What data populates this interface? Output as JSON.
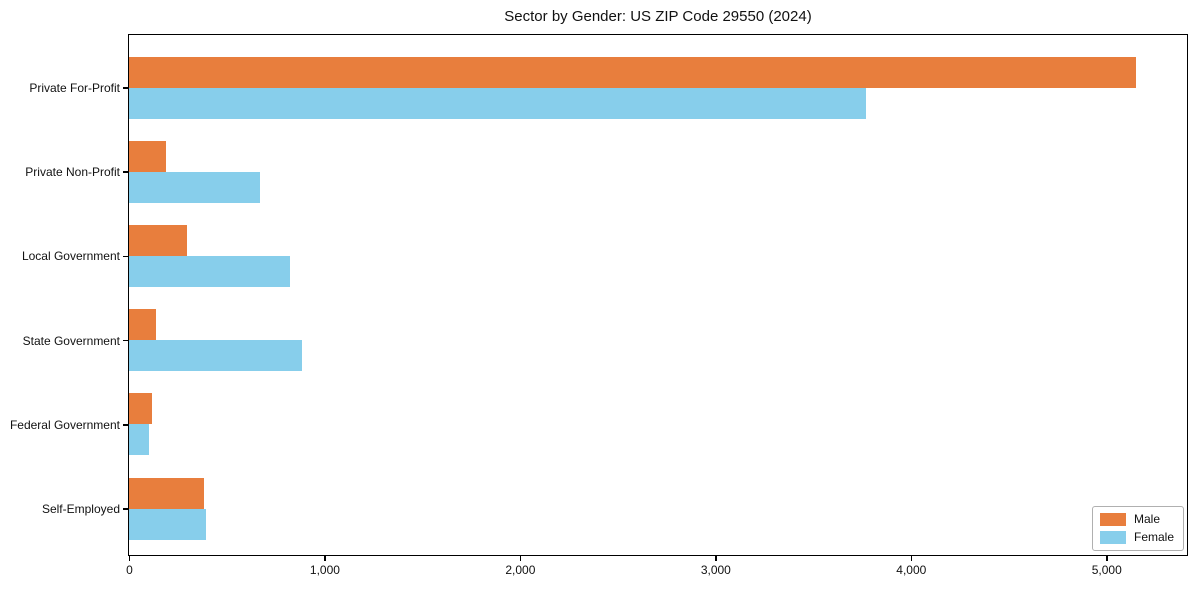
{
  "title": "Sector by Gender: US ZIP Code 29550 (2024)",
  "colors": {
    "male": "#e87e3d",
    "female": "#87ceeb",
    "axis": "#000000",
    "legend_border": "#b0b0b0",
    "background": "#ffffff"
  },
  "chart_data": {
    "type": "bar",
    "orientation": "horizontal",
    "title": "Sector by Gender: US ZIP Code 29550 (2024)",
    "xlabel": "",
    "ylabel": "",
    "categories": [
      "Private For-Profit",
      "Private Non-Profit",
      "Local Government",
      "State Government",
      "Federal Government",
      "Self-Employed"
    ],
    "series": [
      {
        "name": "Male",
        "color": "#e87e3d",
        "values": [
          5150,
          190,
          295,
          140,
          120,
          385
        ]
      },
      {
        "name": "Female",
        "color": "#87ceeb",
        "values": [
          3770,
          670,
          825,
          885,
          100,
          395
        ]
      }
    ],
    "xlim": [
      0,
      5408
    ],
    "x_ticks": [
      0,
      1000,
      2000,
      3000,
      4000,
      5000
    ],
    "x_tick_labels": [
      "0",
      "1,000",
      "2,000",
      "3,000",
      "4,000",
      "5,000"
    ],
    "grid": false,
    "legend_position": "lower right"
  },
  "legend": {
    "items": [
      {
        "label": "Male"
      },
      {
        "label": "Female"
      }
    ]
  }
}
